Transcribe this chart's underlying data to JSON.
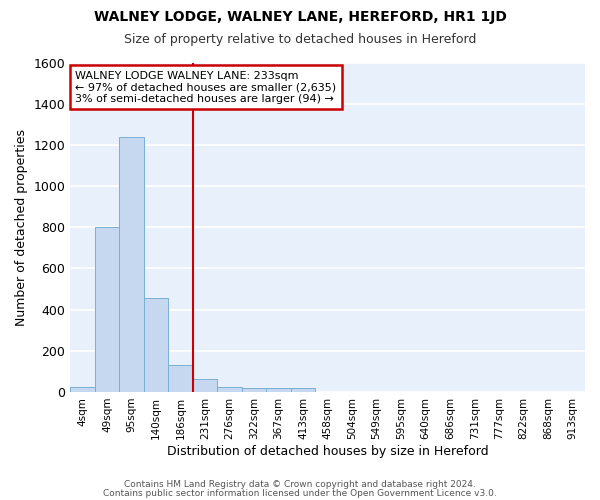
{
  "title": "WALNEY LODGE, WALNEY LANE, HEREFORD, HR1 1JD",
  "subtitle": "Size of property relative to detached houses in Hereford",
  "xlabel": "Distribution of detached houses by size in Hereford",
  "ylabel": "Number of detached properties",
  "bar_color": "#c5d8f0",
  "bar_edge_color": "#7aafd4",
  "background_color": "#e8f0fb",
  "grid_color": "#ffffff",
  "categories": [
    "4sqm",
    "49sqm",
    "95sqm",
    "140sqm",
    "186sqm",
    "231sqm",
    "276sqm",
    "322sqm",
    "367sqm",
    "413sqm",
    "458sqm",
    "504sqm",
    "549sqm",
    "595sqm",
    "640sqm",
    "686sqm",
    "731sqm",
    "777sqm",
    "822sqm",
    "868sqm",
    "913sqm"
  ],
  "values": [
    25,
    800,
    1240,
    455,
    130,
    65,
    25,
    20,
    20,
    20,
    0,
    0,
    0,
    0,
    0,
    0,
    0,
    0,
    0,
    0,
    0
  ],
  "ylim": [
    0,
    1600
  ],
  "yticks": [
    0,
    200,
    400,
    600,
    800,
    1000,
    1200,
    1400,
    1600
  ],
  "red_line_index": 5,
  "annotation_line1": "WALNEY LODGE WALNEY LANE: 233sqm",
  "annotation_line2": "← 97% of detached houses are smaller (2,635)",
  "annotation_line3": "3% of semi-detached houses are larger (94) →",
  "annotation_box_color": "#ffffff",
  "annotation_box_edge_color": "#cc0000",
  "footer_line1": "Contains HM Land Registry data © Crown copyright and database right 2024.",
  "footer_line2": "Contains public sector information licensed under the Open Government Licence v3.0."
}
